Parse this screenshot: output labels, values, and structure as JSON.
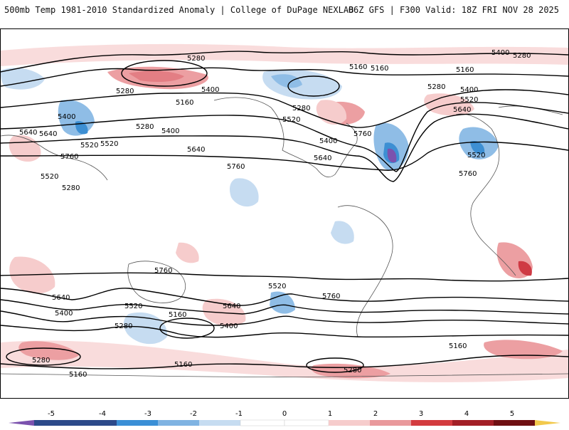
{
  "header": {
    "title_left": "500mb Temp 1981-2010 Standardized Anomaly | College of DuPage NEXLAB",
    "title_right": "06Z GFS | F300 Valid: 18Z FRI NOV 28 2025"
  },
  "contour_labels": [
    "5280",
    "5160",
    "5400",
    "5280",
    "5160",
    "5280",
    "5400",
    "5520",
    "5640",
    "5760",
    "5280",
    "5400",
    "5520",
    "5640",
    "5760",
    "5640",
    "5520",
    "5400",
    "5280",
    "5160",
    "5640",
    "5520",
    "5400",
    "5280",
    "5160",
    "5760",
    "5520",
    "5280",
    "5400",
    "5520",
    "5640",
    "5760",
    "5760",
    "5640",
    "5520",
    "5400",
    "5280",
    "5160",
    "5160",
    "5280",
    "5160",
    "5280",
    "5160",
    "5400",
    "5520",
    "5640",
    "5760"
  ],
  "colorbar": {
    "ticks": [
      "-5",
      "-4",
      "-3",
      "-2",
      "-1",
      "0",
      "1",
      "2",
      "3",
      "4",
      "5"
    ],
    "colors": [
      "#7b52ae",
      "#2c4a8a",
      "#3a8fd6",
      "#7fb3e2",
      "#c6dcf1",
      "#ffffff",
      "#ffffff",
      "#f6cccc",
      "#e9999c",
      "#d33b3f",
      "#a21f26",
      "#6e0f12",
      "#f2c94c"
    ]
  },
  "palette": {
    "warm_light": "#f9dcdc",
    "warm_mid": "#ec9fa2",
    "warm_strong": "#cf3a44",
    "cool_light": "#d3e4f4",
    "cool_mid": "#8fbde6",
    "cool_strong": "#3d8fd3",
    "cool_extreme": "#7b52ae",
    "contour": "#000000",
    "coast": "#555555"
  }
}
